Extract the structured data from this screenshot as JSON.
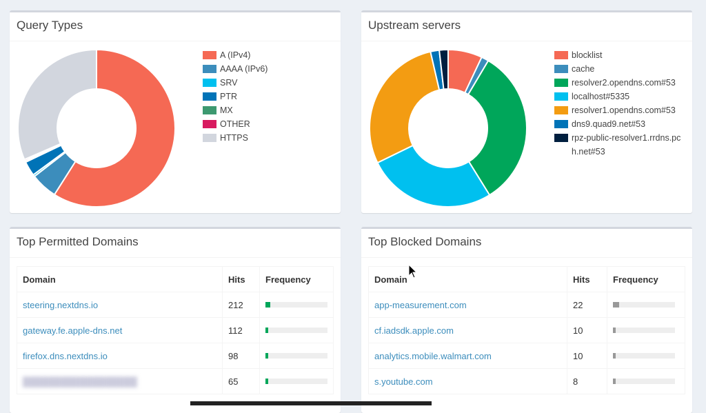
{
  "query_types": {
    "title": "Query Types",
    "legend": [
      {
        "label": "A (IPv4)",
        "color": "#f56954"
      },
      {
        "label": "AAAA (IPv6)",
        "color": "#3c8dbc"
      },
      {
        "label": "SRV",
        "color": "#00c0ef"
      },
      {
        "label": "PTR",
        "color": "#0073b7"
      },
      {
        "label": "MX",
        "color": "#3d9970"
      },
      {
        "label": "OTHER",
        "color": "#d81b60"
      },
      {
        "label": "HTTPS",
        "color": "#d2d6de"
      }
    ],
    "slices": [
      {
        "name": "A (IPv4)",
        "value": 59.0
      },
      {
        "name": "AAAA (IPv6)",
        "value": 5.5
      },
      {
        "name": "SRV",
        "value": 0.4
      },
      {
        "name": "PTR",
        "value": 3.0
      },
      {
        "name": "MX",
        "value": 0.3
      },
      {
        "name": "OTHER",
        "value": 0.3
      },
      {
        "name": "HTTPS",
        "value": 31.5
      }
    ]
  },
  "upstream": {
    "title": "Upstream servers",
    "legend": [
      {
        "label": "blocklist",
        "color": "#f56954"
      },
      {
        "label": "cache",
        "color": "#3c8dbc"
      },
      {
        "label": "resolver2.opendns.com#53",
        "color": "#00a65a"
      },
      {
        "label": "localhost#5335",
        "color": "#00c0ef"
      },
      {
        "label": "resolver1.opendns.com#53",
        "color": "#f39c12"
      },
      {
        "label": "dns9.quad9.net#53",
        "color": "#0073b7"
      },
      {
        "label": "rpz-public-resolver1.rrdns.pch.net#53",
        "color": "#001f3f"
      }
    ],
    "slices": [
      {
        "name": "blocklist",
        "value": 7.0
      },
      {
        "name": "cache",
        "value": 1.5
      },
      {
        "name": "resolver2.opendns.com#53",
        "value": 32.5
      },
      {
        "name": "localhost#5335",
        "value": 26.5
      },
      {
        "name": "resolver1.opendns.com#53",
        "value": 28.5
      },
      {
        "name": "dns9.quad9.net#53",
        "value": 1.8
      },
      {
        "name": "rpz-public-resolver1.rrdns.pch.net#53",
        "value": 1.8
      }
    ]
  },
  "permitted": {
    "title": "Top Permitted Domains",
    "headers": [
      "Domain",
      "Hits",
      "Frequency"
    ],
    "bar_color": "#00a65a",
    "rows": [
      {
        "domain": "steering.nextdns.io",
        "hits": "212",
        "freq": 0.08
      },
      {
        "domain": "gateway.fe.apple-dns.net",
        "hits": "112",
        "freq": 0.04
      },
      {
        "domain": "firefox.dns.nextdns.io",
        "hits": "98",
        "freq": 0.035
      },
      {
        "domain": "",
        "hits": "65",
        "freq": 0.025
      }
    ]
  },
  "blocked": {
    "title": "Top Blocked Domains",
    "headers": [
      "Domain",
      "Hits",
      "Frequency"
    ],
    "bar_color": "#999999",
    "rows": [
      {
        "domain": "app-measurement.com",
        "hits": "22",
        "freq": 0.1
      },
      {
        "domain": "cf.iadsdk.apple.com",
        "hits": "10",
        "freq": 0.04
      },
      {
        "domain": "analytics.mobile.walmart.com",
        "hits": "10",
        "freq": 0.04
      },
      {
        "domain": "s.youtube.com",
        "hits": "8",
        "freq": 0.035
      }
    ]
  }
}
